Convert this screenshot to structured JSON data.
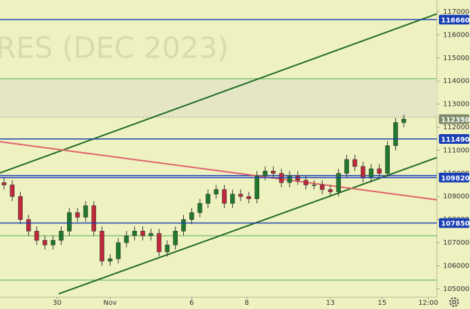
{
  "chart_data": {
    "type": "candlestick",
    "watermark": "RES (DEC 2023)",
    "x": [
      1,
      3,
      5,
      7,
      9,
      11,
      13,
      15,
      17,
      19,
      21,
      23,
      25,
      27,
      29,
      31,
      33,
      35,
      37,
      39,
      41,
      43,
      45,
      47,
      49,
      51,
      53,
      55,
      57,
      59,
      61,
      63,
      65,
      67,
      69,
      71,
      73,
      75,
      77,
      79,
      81,
      83,
      85,
      87,
      89,
      91,
      93,
      95,
      97,
      99
    ],
    "open": [
      109600,
      109500,
      109000,
      108000,
      107500,
      107100,
      106900,
      107100,
      107500,
      108300,
      108100,
      108600,
      107500,
      106200,
      106300,
      107000,
      107300,
      107500,
      107300,
      107400,
      106600,
      106900,
      107500,
      108000,
      108300,
      108700,
      109100,
      109300,
      108700,
      109100,
      109000,
      108900,
      109900,
      110100,
      110000,
      109600,
      109900,
      109700,
      109500,
      109500,
      109300,
      109200,
      110000,
      110600,
      110300,
      109800,
      110200,
      110000,
      111200,
      112200
    ],
    "high": [
      109800,
      109700,
      109200,
      108200,
      107700,
      107300,
      107300,
      107700,
      108500,
      108500,
      108800,
      108800,
      107700,
      106500,
      107200,
      107500,
      107700,
      107700,
      107600,
      107600,
      107100,
      107700,
      108200,
      108500,
      108900,
      109300,
      109500,
      109500,
      109300,
      109300,
      109200,
      110100,
      110300,
      110300,
      110200,
      110100,
      110100,
      109900,
      109700,
      109700,
      109500,
      110200,
      110800,
      110800,
      110500,
      110400,
      110400,
      111400,
      112400,
      112550
    ],
    "low": [
      109300,
      108800,
      107800,
      107300,
      106900,
      106700,
      106700,
      106900,
      107300,
      107900,
      107900,
      107300,
      106000,
      106000,
      106100,
      106800,
      107100,
      107100,
      107100,
      106400,
      106400,
      106700,
      107300,
      107800,
      108100,
      108500,
      108900,
      108500,
      108500,
      108800,
      108700,
      108700,
      109700,
      109800,
      109400,
      109400,
      109500,
      109300,
      109300,
      109100,
      109000,
      109000,
      109800,
      110100,
      109600,
      109600,
      109800,
      109800,
      111000,
      112000
    ],
    "close": [
      109500,
      109000,
      108000,
      107500,
      107100,
      106900,
      107100,
      107500,
      108300,
      108100,
      108600,
      107500,
      106200,
      106300,
      107000,
      107300,
      107500,
      107300,
      107400,
      106600,
      106900,
      107500,
      108000,
      108300,
      108700,
      109100,
      109300,
      108700,
      109100,
      109000,
      108900,
      109900,
      110100,
      110000,
      109600,
      109900,
      109700,
      109500,
      109500,
      109300,
      109200,
      110000,
      110600,
      110300,
      109800,
      110200,
      110000,
      111200,
      112200,
      112350
    ],
    "up_color": "#1f7a2a",
    "down_color": "#c0283a",
    "xlim": [
      0,
      107.1
    ],
    "ylim": [
      104635,
      117509
    ],
    "xticks": [
      {
        "value": 14,
        "label": "30"
      },
      {
        "value": 27,
        "label": "Nov"
      },
      {
        "value": 47,
        "label": "6"
      },
      {
        "value": 60.5,
        "label": "8"
      },
      {
        "value": 81,
        "label": "13"
      },
      {
        "value": 93.7,
        "label": "15"
      },
      {
        "value": 105,
        "label": "12:00"
      }
    ],
    "yticks": [
      105000,
      106000,
      107000,
      108000,
      109000,
      110000,
      111000,
      112000,
      113000,
      114000,
      115000,
      116000,
      117000
    ],
    "levels": [
      116660,
      111490,
      109820,
      107850
    ],
    "level_color": "#1a3fb5",
    "extra_levels": [
      109900
    ],
    "thin_lines": [
      114100,
      107300,
      105380
    ],
    "thin_color": "#4caf50",
    "last_price": 112350,
    "last_color": "#7d8a6a",
    "trend_lines": [
      {
        "x": [
          0,
          107.1
        ],
        "y": [
          110020,
          116910
        ],
        "color": "#1e6a22"
      },
      {
        "x": [
          14.4,
          107.1
        ],
        "y": [
          104784,
          110683
        ],
        "color": "#1e6a22"
      },
      {
        "x": [
          0,
          107.1
        ],
        "y": [
          111371,
          108856
        ],
        "color": "#e0606a"
      }
    ]
  }
}
